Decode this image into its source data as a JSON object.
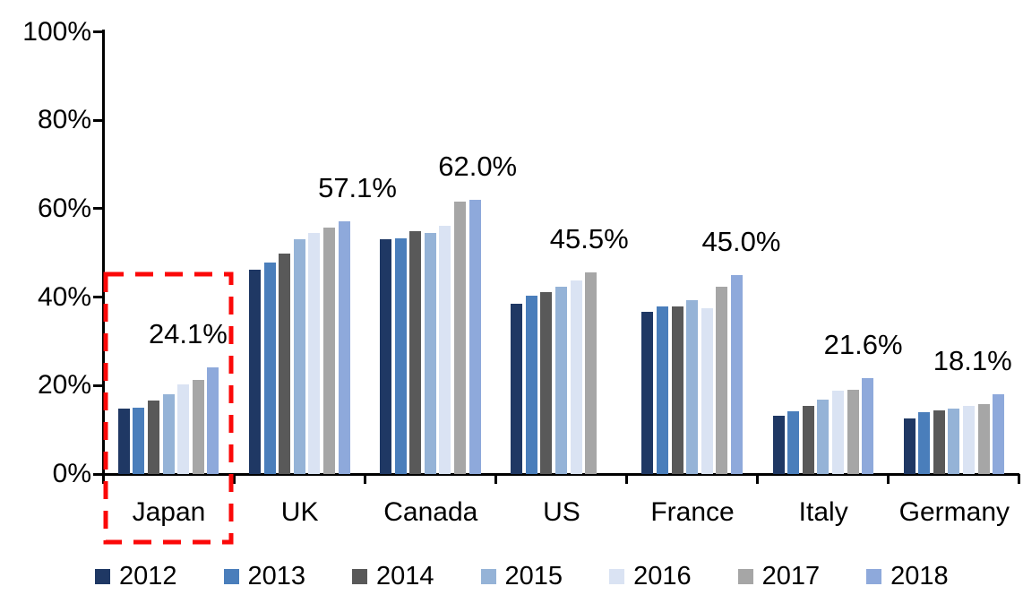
{
  "chart_data": {
    "type": "bar",
    "title": "",
    "categories": [
      "Japan",
      "UK",
      "Canada",
      "US",
      "France",
      "Italy",
      "Germany"
    ],
    "series": [
      {
        "name": "2012",
        "color": "#1f3864",
        "values": [
          14.8,
          46.3,
          53.0,
          38.4,
          36.6,
          13.2,
          12.5
        ]
      },
      {
        "name": "2013",
        "color": "#4a7ebb",
        "values": [
          15.0,
          47.8,
          53.3,
          40.3,
          37.9,
          14.1,
          14.0
        ]
      },
      {
        "name": "2014",
        "color": "#595959",
        "values": [
          16.6,
          49.8,
          54.9,
          41.2,
          37.8,
          15.3,
          14.3
        ]
      },
      {
        "name": "2015",
        "color": "#95b3d7",
        "values": [
          18.1,
          53.1,
          54.6,
          42.3,
          39.4,
          16.8,
          14.8
        ]
      },
      {
        "name": "2016",
        "color": "#dae3f3",
        "values": [
          20.2,
          54.6,
          56.1,
          43.8,
          37.4,
          18.8,
          15.3
        ]
      },
      {
        "name": "2017",
        "color": "#a6a6a6",
        "values": [
          21.2,
          55.7,
          61.6,
          45.5,
          42.4,
          19.1,
          15.9
        ]
      },
      {
        "name": "2018",
        "color": "#8ea9db",
        "values": [
          24.1,
          57.1,
          62.0,
          null,
          45.0,
          21.6,
          18.1
        ]
      }
    ],
    "data_labels": [
      "24.1%",
      "57.1%",
      "62.0%",
      "45.5%",
      "45.0%",
      "21.6%",
      "18.1%"
    ],
    "y_ticks": [
      {
        "label": "0%",
        "value": 0
      },
      {
        "label": "20%",
        "value": 20
      },
      {
        "label": "40%",
        "value": 40
      },
      {
        "label": "60%",
        "value": 60
      },
      {
        "label": "80%",
        "value": 80
      },
      {
        "label": "100%",
        "value": 100
      }
    ],
    "ylim": [
      0,
      100
    ],
    "grid": false,
    "legend_position": "bottom",
    "axis_color": "#000000",
    "highlight": {
      "category": "Japan",
      "style": "red-dashed-box",
      "color": "#fb0808"
    }
  }
}
